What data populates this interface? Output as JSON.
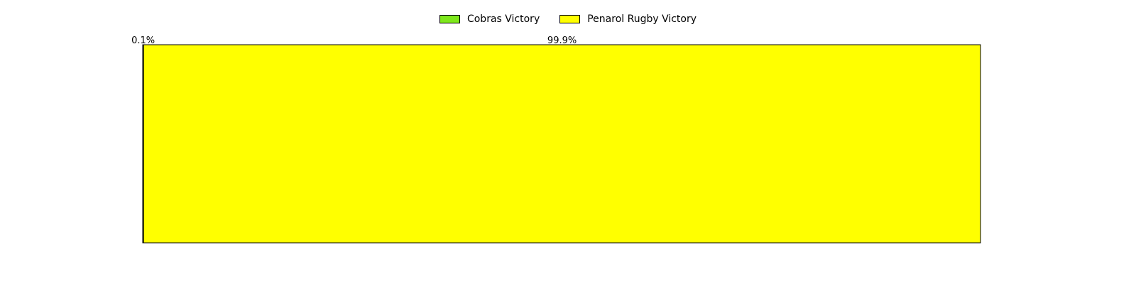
{
  "chart_data": {
    "type": "bar",
    "orientation": "horizontal-stacked-100",
    "categories": [
      ""
    ],
    "series": [
      {
        "name": "Cobras Victory",
        "values": [
          0.1
        ],
        "label": "0.1%",
        "color": "#7ee81c"
      },
      {
        "name": "Penarol Rugby Victory",
        "values": [
          99.9
        ],
        "label": "99.9%",
        "color": "#ffff00"
      }
    ],
    "title": "",
    "xlabel": "",
    "ylabel": "",
    "xlim": [
      0,
      100
    ],
    "grid": false,
    "legend_position": "top-center"
  }
}
